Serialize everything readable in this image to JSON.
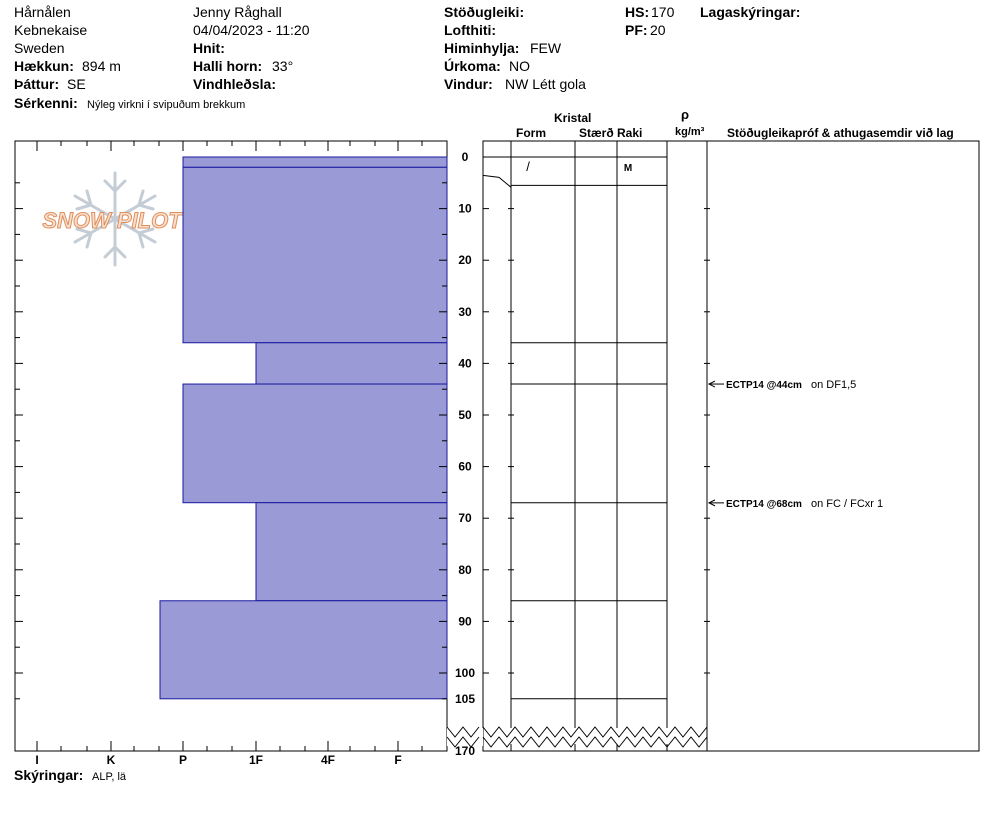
{
  "header": {
    "location": "Hårnålen",
    "range": "Kebnekaise",
    "country": "Sweden",
    "elevation_label": "Hækkun:",
    "elevation": "894 m",
    "aspect_label": "Þáttur:",
    "aspect": "SE",
    "observer": "Jenny Råghall",
    "datetime": "04/04/2023 - 11:20",
    "coords_label": "Hnit:",
    "slope_label": "Halli horn:",
    "slope": "33°",
    "wind_loading_label": "Vindhleðsla:",
    "stability_label": "Stöðugleiki:",
    "air_temp_label": "Lofthiti:",
    "sky_label": "Himinhylja:",
    "sky": "FEW",
    "precip_label": "Úrkoma:",
    "precip": "NO",
    "wind_label": "Vindur:",
    "wind": "NW Létt gola",
    "hs_label": "HS:",
    "hs": "170",
    "pf_label": "PF:",
    "pf": "20",
    "layer_notes_label": "Lagaskýringar:",
    "features_label": "Sérkenni:",
    "features": "Nýleg virkni í svipuðum brekkum"
  },
  "columns": {
    "crystal": "Kristal",
    "form": "Form",
    "size": "Stærð",
    "moisture": "Raki",
    "rho": "ρ",
    "density_unit": "kg/m³",
    "tests": "Stöðugleikapróf & athugasemdir við lag"
  },
  "logo": {
    "text": "SNOW PILOT"
  },
  "footer": {
    "notes_label": "Skýringar:",
    "notes": "ALP, lä"
  },
  "chart_data": {
    "type": "bar",
    "title": "",
    "hardness_scale": [
      "I",
      "K",
      "P",
      "1F",
      "4F",
      "F"
    ],
    "depth_ticks": [
      "0",
      "10",
      "20",
      "30",
      "40",
      "50",
      "60",
      "70",
      "80",
      "90",
      "100",
      "105",
      "170"
    ],
    "ylim": [
      0,
      105
    ],
    "layers": [
      {
        "top": 0,
        "bottom": 2,
        "hardness": "P"
      },
      {
        "top": 2,
        "bottom": 36,
        "hardness": "P"
      },
      {
        "top": 36,
        "bottom": 44,
        "hardness": "1F"
      },
      {
        "top": 44,
        "bottom": 67,
        "hardness": "P"
      },
      {
        "top": 67,
        "bottom": 86,
        "hardness": "1F"
      },
      {
        "top": 86,
        "bottom": 105,
        "hardness": "P+"
      }
    ],
    "grain_rows": [
      {
        "form": "/",
        "size": "",
        "moisture": "M"
      }
    ],
    "tests": [
      {
        "depth": 44,
        "result": "ECTP14 @44cm",
        "comment": "on DF1,5"
      },
      {
        "depth": 68,
        "result": "ECTP14 @68cm",
        "comment": "on FC / FCxr 1"
      }
    ]
  }
}
